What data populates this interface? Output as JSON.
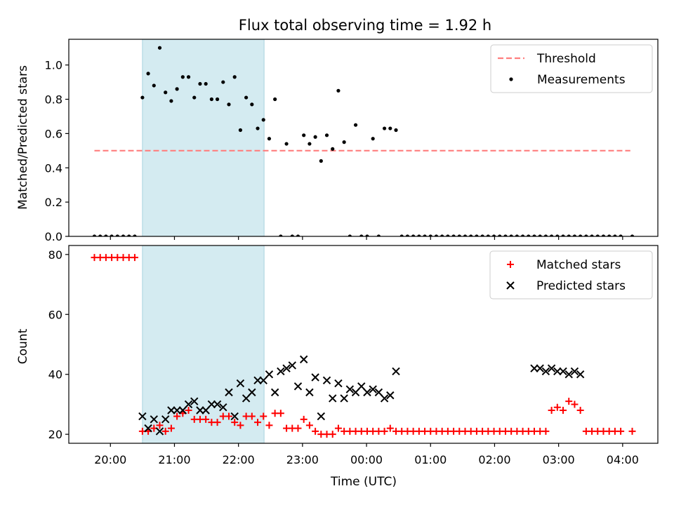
{
  "chart_data": [
    {
      "type": "scatter",
      "title": "Flux total observing time = 1.92 h",
      "xlabel": "",
      "ylabel": "Matched/Predicted stars",
      "xlim": [
        19.35,
        28.55
      ],
      "ylim": [
        0,
        1.15
      ],
      "yticks": [
        0.0,
        0.2,
        0.4,
        0.6,
        0.8,
        1.0
      ],
      "yticklabels": [
        "0.0",
        "0.2",
        "0.4",
        "0.6",
        "0.8",
        "1.0"
      ],
      "shaded_span": [
        20.5,
        22.4
      ],
      "legend_position": "top-right",
      "threshold": {
        "name": "Threshold",
        "value": 0.5,
        "x_range": [
          19.75,
          28.12
        ],
        "color": "#ff7f7f"
      },
      "series": [
        {
          "name": "Measurements",
          "color": "#000000",
          "x": [
            19.75,
            19.84,
            19.93,
            20.02,
            20.11,
            20.2,
            20.29,
            20.38,
            20.5,
            20.59,
            20.68,
            20.77,
            20.86,
            20.95,
            21.04,
            21.13,
            21.22,
            21.31,
            21.4,
            21.49,
            21.58,
            21.67,
            21.76,
            21.85,
            21.94,
            22.03,
            22.12,
            22.21,
            22.3,
            22.39,
            22.48,
            22.57,
            22.66,
            22.75,
            22.84,
            22.93,
            23.02,
            23.11,
            23.2,
            23.29,
            23.38,
            23.47,
            23.56,
            23.65,
            23.74,
            23.83,
            23.92,
            24.01,
            24.1,
            24.19,
            24.28,
            24.37,
            24.46,
            24.55,
            24.64,
            24.73,
            24.82,
            24.91,
            25.0,
            25.09,
            25.18,
            25.27,
            25.36,
            25.45,
            25.54,
            25.63,
            25.72,
            25.81,
            25.9,
            25.99,
            26.08,
            26.17,
            26.26,
            26.35,
            26.44,
            26.53,
            26.62,
            26.71,
            26.8,
            26.89,
            26.98,
            27.07,
            27.16,
            27.25,
            27.34,
            27.43,
            27.52,
            27.61,
            27.7,
            27.79,
            27.88,
            27.97,
            28.15
          ],
          "y": [
            0,
            0,
            0,
            0,
            0,
            0,
            0,
            0,
            0.81,
            0.95,
            0.88,
            1.1,
            0.84,
            0.79,
            0.86,
            0.93,
            0.93,
            0.81,
            0.89,
            0.89,
            0.8,
            0.8,
            0.9,
            0.77,
            0.93,
            0.62,
            0.81,
            0.77,
            0.63,
            0.68,
            0.57,
            0.8,
            0,
            0.54,
            0,
            0,
            0.59,
            0.54,
            0.58,
            0.44,
            0.59,
            0.51,
            0.85,
            0.55,
            0,
            0.65,
            0,
            0,
            0.57,
            0,
            0.63,
            0.63,
            0.62,
            0,
            0,
            0,
            0,
            0,
            0,
            0,
            0,
            0,
            0,
            0,
            0,
            0,
            0,
            0,
            0,
            0,
            0,
            0,
            0,
            0,
            0,
            0,
            0,
            0,
            0,
            0,
            0,
            0,
            0,
            0,
            0,
            0,
            0,
            0,
            0,
            0,
            0,
            0,
            0
          ]
        }
      ]
    },
    {
      "type": "scatter",
      "title": "",
      "xlabel": "Time (UTC)",
      "ylabel": "Count",
      "xlim": [
        19.35,
        28.55
      ],
      "ylim": [
        17,
        83
      ],
      "yticks": [
        20,
        40,
        60,
        80
      ],
      "yticklabels": [
        "20",
        "40",
        "60",
        "80"
      ],
      "xticks": [
        20,
        21,
        22,
        23,
        24,
        25,
        26,
        27,
        28
      ],
      "xticklabels": [
        "20:00",
        "21:00",
        "22:00",
        "23:00",
        "00:00",
        "01:00",
        "02:00",
        "03:00",
        "04:00"
      ],
      "shaded_span": [
        20.5,
        22.4
      ],
      "legend_position": "top-right",
      "series": [
        {
          "name": "Matched stars",
          "marker": "plus",
          "color": "#ff0000",
          "x": [
            19.75,
            19.84,
            19.93,
            20.02,
            20.11,
            20.2,
            20.29,
            20.38,
            20.5,
            20.59,
            20.68,
            20.77,
            20.86,
            20.95,
            21.04,
            21.13,
            21.22,
            21.31,
            21.4,
            21.49,
            21.58,
            21.67,
            21.76,
            21.85,
            21.94,
            22.03,
            22.12,
            22.21,
            22.3,
            22.39,
            22.48,
            22.57,
            22.66,
            22.75,
            22.84,
            22.93,
            23.02,
            23.11,
            23.2,
            23.29,
            23.38,
            23.47,
            23.56,
            23.65,
            23.74,
            23.83,
            23.92,
            24.01,
            24.1,
            24.19,
            24.28,
            24.37,
            24.46,
            24.55,
            24.64,
            24.73,
            24.82,
            24.91,
            25.0,
            25.09,
            25.18,
            25.27,
            25.36,
            25.45,
            25.54,
            25.63,
            25.72,
            25.81,
            25.9,
            25.99,
            26.08,
            26.17,
            26.26,
            26.35,
            26.44,
            26.53,
            26.62,
            26.71,
            26.8,
            26.89,
            26.98,
            27.07,
            27.16,
            27.25,
            27.34,
            27.43,
            27.52,
            27.61,
            27.7,
            27.79,
            27.88,
            27.97,
            28.15
          ],
          "y": [
            79,
            79,
            79,
            79,
            79,
            79,
            79,
            79,
            21,
            21,
            22,
            23,
            21,
            22,
            26,
            27,
            28,
            25,
            25,
            25,
            24,
            24,
            26,
            26,
            24,
            23,
            26,
            26,
            24,
            26,
            23,
            27,
            27,
            22,
            22,
            22,
            25,
            23,
            21,
            20,
            20,
            20,
            22,
            21,
            21,
            21,
            21,
            21,
            21,
            21,
            21,
            22,
            21,
            21,
            21,
            21,
            21,
            21,
            21,
            21,
            21,
            21,
            21,
            21,
            21,
            21,
            21,
            21,
            21,
            21,
            21,
            21,
            21,
            21,
            21,
            21,
            21,
            21,
            21,
            28,
            29,
            28,
            31,
            30,
            28,
            21,
            21,
            21,
            21,
            21,
            21,
            21,
            21
          ]
        },
        {
          "name": "Predicted stars",
          "marker": "x",
          "color": "#000000",
          "x": [
            20.5,
            20.59,
            20.68,
            20.77,
            20.86,
            20.95,
            21.04,
            21.13,
            21.22,
            21.31,
            21.4,
            21.49,
            21.58,
            21.67,
            21.76,
            21.85,
            21.94,
            22.03,
            22.12,
            22.21,
            22.3,
            22.39,
            22.48,
            22.57,
            22.66,
            22.75,
            22.84,
            22.93,
            23.02,
            23.11,
            23.2,
            23.29,
            23.38,
            23.47,
            23.56,
            23.65,
            23.74,
            23.83,
            23.92,
            24.01,
            24.1,
            24.19,
            24.28,
            24.37,
            24.46,
            26.62,
            26.71,
            26.8,
            26.89,
            26.98,
            27.07,
            27.16,
            27.25,
            27.34
          ],
          "y": [
            26,
            22,
            25,
            21,
            25,
            28,
            28,
            28,
            30,
            31,
            28,
            28,
            30,
            30,
            29,
            34,
            26,
            37,
            32,
            34,
            38,
            38,
            40,
            34,
            41,
            42,
            43,
            36,
            45,
            34,
            39,
            26,
            38,
            32,
            37,
            32,
            35,
            34,
            36,
            34,
            35,
            34,
            32,
            33,
            41,
            42,
            42,
            41,
            42,
            41,
            41,
            40,
            41,
            40
          ]
        }
      ]
    }
  ]
}
